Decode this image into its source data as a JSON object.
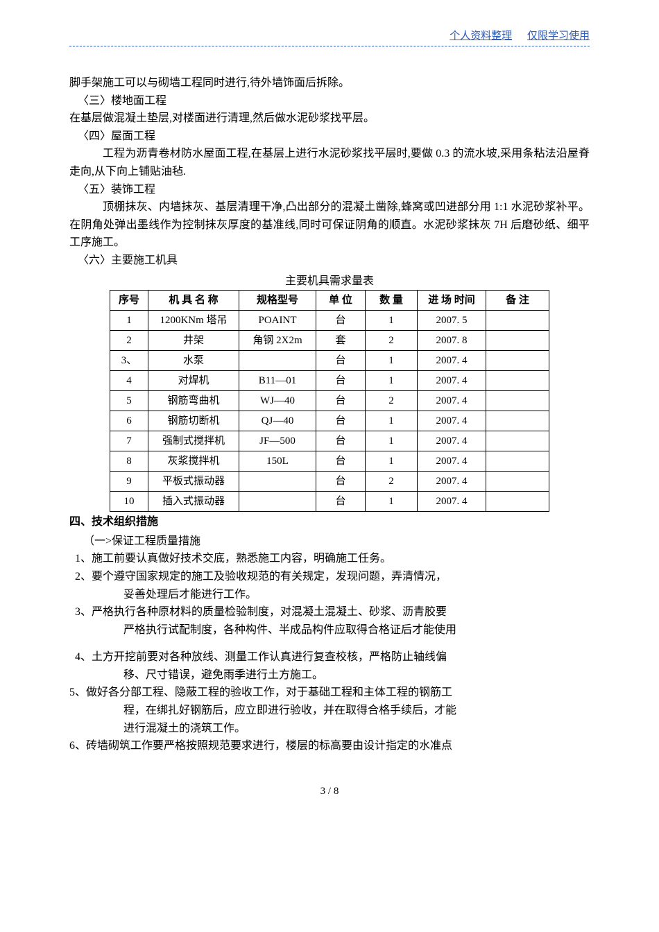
{
  "header": {
    "left": "个人资料整理",
    "right": "仅限学习使用"
  },
  "body": {
    "p1": "脚手架施工可以与砌墙工程同时进行,待外墙饰面后拆除。",
    "s3_title": "〈三〉楼地面工程",
    "s3_body": "在基层做混凝土垫层,对楼面进行清理,然后做水泥砂浆找平层。",
    "s4_title": "〈四〉屋面工程",
    "s4_body": "工程为沥青卷材防水屋面工程,在基层上进行水泥砂浆找平层时,要做 0.3 的流水坡,采用条粘法沿屋脊走向,从下向上铺贴油毡.",
    "s5_title": "〈五〉装饰工程",
    "s5_body": "顶棚抹灰、内墙抹灰、基层清理干净,凸出部分的混凝土凿除,蜂窝或凹进部分用 1:1 水泥砂浆补平。在阴角处弹出墨线作为控制抹灰厚度的基准线,同时可保证阴角的顺直。水泥砂浆抹灰 7H 后磨砂纸、细平工序施工。",
    "s6_title": "〈六〉主要施工机具",
    "table_title": "主要机具需求量表"
  },
  "table": {
    "headers": {
      "seq": "序号",
      "name": "机 具 名 称",
      "spec": "规格型号",
      "unit": "单 位",
      "qty": "数 量",
      "time": "进 场 时间",
      "note": "备  注"
    },
    "rows": [
      {
        "seq": "1",
        "name": "1200KNm 塔吊",
        "spec": "POAINT",
        "unit": "台",
        "qty": "1",
        "time": "2007.  5",
        "note": ""
      },
      {
        "seq": "2",
        "name": "井架",
        "spec": "角钢 2X2m",
        "unit": "套",
        "qty": "2",
        "time": "2007.  8",
        "note": ""
      },
      {
        "seq": "3、",
        "name": "水泵",
        "spec": "",
        "unit": "台",
        "qty": "1",
        "time": "2007.  4",
        "note": ""
      },
      {
        "seq": "4",
        "name": "对焊机",
        "spec": "B11—01",
        "unit": "台",
        "qty": "1",
        "time": "2007.  4",
        "note": ""
      },
      {
        "seq": "5",
        "name": "钢筋弯曲机",
        "spec": "WJ—40",
        "unit": "台",
        "qty": "2",
        "time": "2007.  4",
        "note": ""
      },
      {
        "seq": "6",
        "name": "钢筋切断机",
        "spec": "QJ—40",
        "unit": "台",
        "qty": "1",
        "time": "2007.  4",
        "note": ""
      },
      {
        "seq": "7",
        "name": "强制式搅拌机",
        "spec": "JF—500",
        "unit": "台",
        "qty": "1",
        "time": "2007.  4",
        "note": ""
      },
      {
        "seq": "8",
        "name": "灰浆搅拌机",
        "spec": "150L",
        "unit": "台",
        "qty": "1",
        "time": "2007.  4",
        "note": ""
      },
      {
        "seq": "9",
        "name": "平板式振动器",
        "spec": "",
        "unit": "台",
        "qty": "2",
        "time": "2007.  4",
        "note": ""
      },
      {
        "seq": "10",
        "name": "插入式振动器",
        "spec": "",
        "unit": "台",
        "qty": "1",
        "time": "2007.  4",
        "note": ""
      }
    ]
  },
  "section4": {
    "title": "四、技术组织措施",
    "sub1": "（一>保证工程质量措施",
    "i1": "1、施工前要认真做好技术交底，熟悉施工内容，明确施工任务。",
    "i2": "2、要个遵守国家规定的施工及验收规范的有关规定，发现问题，弄清情况，",
    "i2b": "妥善处理后才能进行工作。",
    "i3": "3、严格执行各种原材料的质量检验制度，对混凝土混凝土、砂浆、沥青胶要",
    "i3b": "严格执行试配制度，各种构件、半成品构件应取得合格证后才能使用",
    "i4": "4、土方开挖前要对各种放线、测量工作认真进行复查校核，严格防止轴线偏",
    "i4b": "移、尺寸错误，避免雨季进行土方施工。",
    "i5": "5、做好各分部工程、隐蔽工程的验收工作，对于基础工程和主体工程的钢筋工",
    "i5b": "程，在绑扎好钢筋后，应立即进行验收，并在取得合格手续后，才能",
    "i5c": "进行混凝土的浇筑工作。",
    "i6": "6、砖墙砌筑工作要严格按照规范要求进行，楼层的标高要由设计指定的水准点"
  },
  "footer": {
    "page": "3 / 8"
  }
}
